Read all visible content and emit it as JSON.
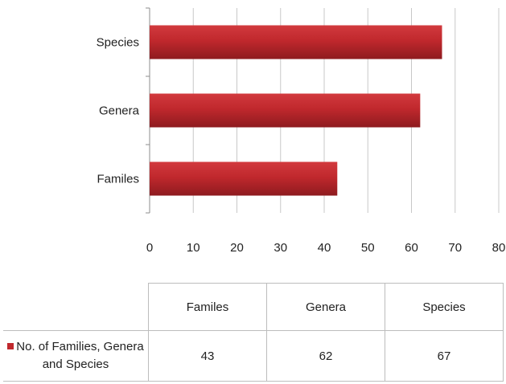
{
  "chart_data": {
    "type": "bar",
    "orientation": "horizontal",
    "categories": [
      "Familes",
      "Genera",
      "Species"
    ],
    "series": [
      {
        "name": "No. of Families, Genera and Species",
        "values": [
          43,
          62,
          67
        ],
        "color": "#c0282d"
      }
    ],
    "xlim": [
      0,
      80
    ],
    "xticks": [
      "0",
      "10",
      "20",
      "30",
      "40",
      "50",
      "60",
      "70",
      "80"
    ],
    "grid": true,
    "data_table": true
  }
}
